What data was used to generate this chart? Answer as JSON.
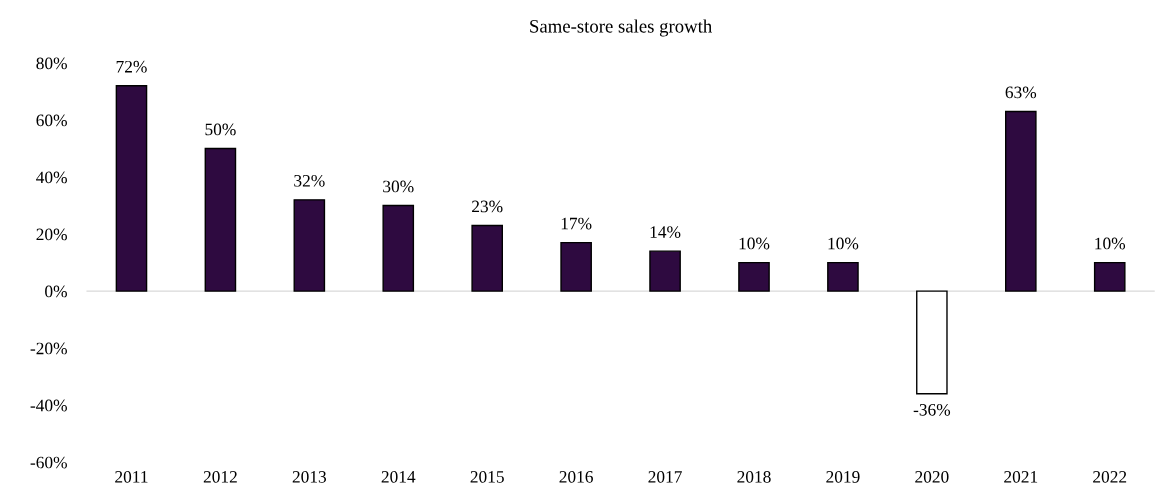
{
  "chart_data": {
    "type": "bar",
    "title": "Same-store sales growth",
    "categories": [
      "2011",
      "2012",
      "2013",
      "2014",
      "2015",
      "2016",
      "2017",
      "2018",
      "2019",
      "2020",
      "2021",
      "2022"
    ],
    "values": [
      72,
      50,
      32,
      30,
      23,
      17,
      14,
      10,
      10,
      -36,
      63,
      10
    ],
    "value_labels": [
      "72%",
      "50%",
      "32%",
      "30%",
      "23%",
      "17%",
      "14%",
      "10%",
      "10%",
      "-36%",
      "63%",
      "10%"
    ],
    "colors": [
      "#2e0a40",
      "#2e0a40",
      "#2e0a40",
      "#2e0a40",
      "#2e0a40",
      "#2e0a40",
      "#2e0a40",
      "#2e0a40",
      "#2e0a40",
      "#ffffff",
      "#2e0a40",
      "#2e0a40"
    ],
    "ylim": [
      -60,
      80
    ],
    "yticks": [
      {
        "value": -60,
        "label": "-60%"
      },
      {
        "value": -40,
        "label": "-40%"
      },
      {
        "value": -20,
        "label": "-20%"
      },
      {
        "value": 0,
        "label": "0%"
      },
      {
        "value": 20,
        "label": "20%"
      },
      {
        "value": 40,
        "label": "40%"
      },
      {
        "value": 60,
        "label": "60%"
      },
      {
        "value": 80,
        "label": "80%"
      }
    ],
    "legend": false
  }
}
